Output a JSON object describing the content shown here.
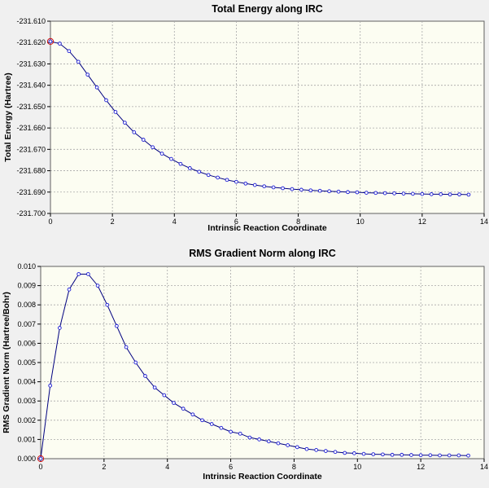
{
  "chart_data": [
    {
      "type": "line",
      "title": "Total Energy along IRC",
      "xlabel": "Intrinsic Reaction Coordinate",
      "ylabel": "Total Energy (Hartree)",
      "xlim": [
        0,
        14
      ],
      "ylim": [
        -231.7,
        -231.61
      ],
      "xticks": [
        "0",
        "2",
        "4",
        "6",
        "8",
        "10",
        "12",
        "14"
      ],
      "yticks": [
        "-231.610",
        "-231.620",
        "-231.630",
        "-231.640",
        "-231.650",
        "-231.660",
        "-231.670",
        "-231.680",
        "-231.690",
        "-231.700"
      ],
      "grid": true,
      "x": [
        0.0,
        0.3,
        0.6,
        0.9,
        1.2,
        1.5,
        1.8,
        2.1,
        2.4,
        2.7,
        3.0,
        3.3,
        3.6,
        3.9,
        4.2,
        4.5,
        4.8,
        5.1,
        5.4,
        5.7,
        6.0,
        6.3,
        6.6,
        6.9,
        7.2,
        7.5,
        7.8,
        8.1,
        8.4,
        8.7,
        9.0,
        9.3,
        9.6,
        9.9,
        10.2,
        10.5,
        10.8,
        11.1,
        11.4,
        11.7,
        12.0,
        12.3,
        12.6,
        12.9,
        13.2,
        13.5
      ],
      "series": [
        {
          "values": [
            -231.6195,
            -231.6205,
            -231.624,
            -231.629,
            -231.635,
            -231.641,
            -231.647,
            -231.6525,
            -231.6575,
            -231.662,
            -231.6655,
            -231.669,
            -231.672,
            -231.6745,
            -231.6768,
            -231.6788,
            -231.6805,
            -231.682,
            -231.6832,
            -231.6843,
            -231.6852,
            -231.686,
            -231.6867,
            -231.6873,
            -231.6878,
            -231.6882,
            -231.6886,
            -231.6889,
            -231.6892,
            -231.6894,
            -231.6896,
            -231.6898,
            -231.69,
            -231.6901,
            -231.6903,
            -231.6904,
            -231.6905,
            -231.6906,
            -231.6907,
            -231.6908,
            -231.6909,
            -231.691,
            -231.691,
            -231.6911,
            -231.6911,
            -231.6912
          ]
        }
      ],
      "highlight_index": 0
    },
    {
      "type": "line",
      "title": "RMS Gradient Norm along IRC",
      "xlabel": "Intrinsic Reaction Coordinate",
      "ylabel": "RMS Gradient Norm (Hartree/Bohr)",
      "xlim": [
        0,
        14
      ],
      "ylim": [
        0.0,
        0.01
      ],
      "xticks": [
        "0",
        "2",
        "4",
        "6",
        "8",
        "10",
        "12",
        "14"
      ],
      "yticks": [
        "0.010",
        "0.009",
        "0.008",
        "0.007",
        "0.006",
        "0.005",
        "0.004",
        "0.003",
        "0.002",
        "0.001",
        "0.000"
      ],
      "grid": true,
      "x": [
        0.0,
        0.3,
        0.6,
        0.9,
        1.2,
        1.5,
        1.8,
        2.1,
        2.4,
        2.7,
        3.0,
        3.3,
        3.6,
        3.9,
        4.2,
        4.5,
        4.8,
        5.1,
        5.4,
        5.7,
        6.0,
        6.3,
        6.6,
        6.9,
        7.2,
        7.5,
        7.8,
        8.1,
        8.4,
        8.7,
        9.0,
        9.3,
        9.6,
        9.9,
        10.2,
        10.5,
        10.8,
        11.1,
        11.4,
        11.7,
        12.0,
        12.3,
        12.6,
        12.9,
        13.2,
        13.5
      ],
      "series": [
        {
          "values": [
            0.0,
            0.0038,
            0.0068,
            0.0088,
            0.0096,
            0.0096,
            0.009,
            0.008,
            0.0069,
            0.0058,
            0.005,
            0.0043,
            0.0037,
            0.0033,
            0.0029,
            0.0026,
            0.0023,
            0.002,
            0.0018,
            0.0016,
            0.0014,
            0.0013,
            0.0011,
            0.001,
            0.0009,
            0.0008,
            0.0007,
            0.0006,
            0.0005,
            0.00045,
            0.0004,
            0.00035,
            0.0003,
            0.00028,
            0.00025,
            0.00023,
            0.00022,
            0.0002,
            0.0002,
            0.00019,
            0.00018,
            0.00018,
            0.00017,
            0.00017,
            0.00017,
            0.00016
          ]
        }
      ],
      "highlight_index": 0
    }
  ]
}
